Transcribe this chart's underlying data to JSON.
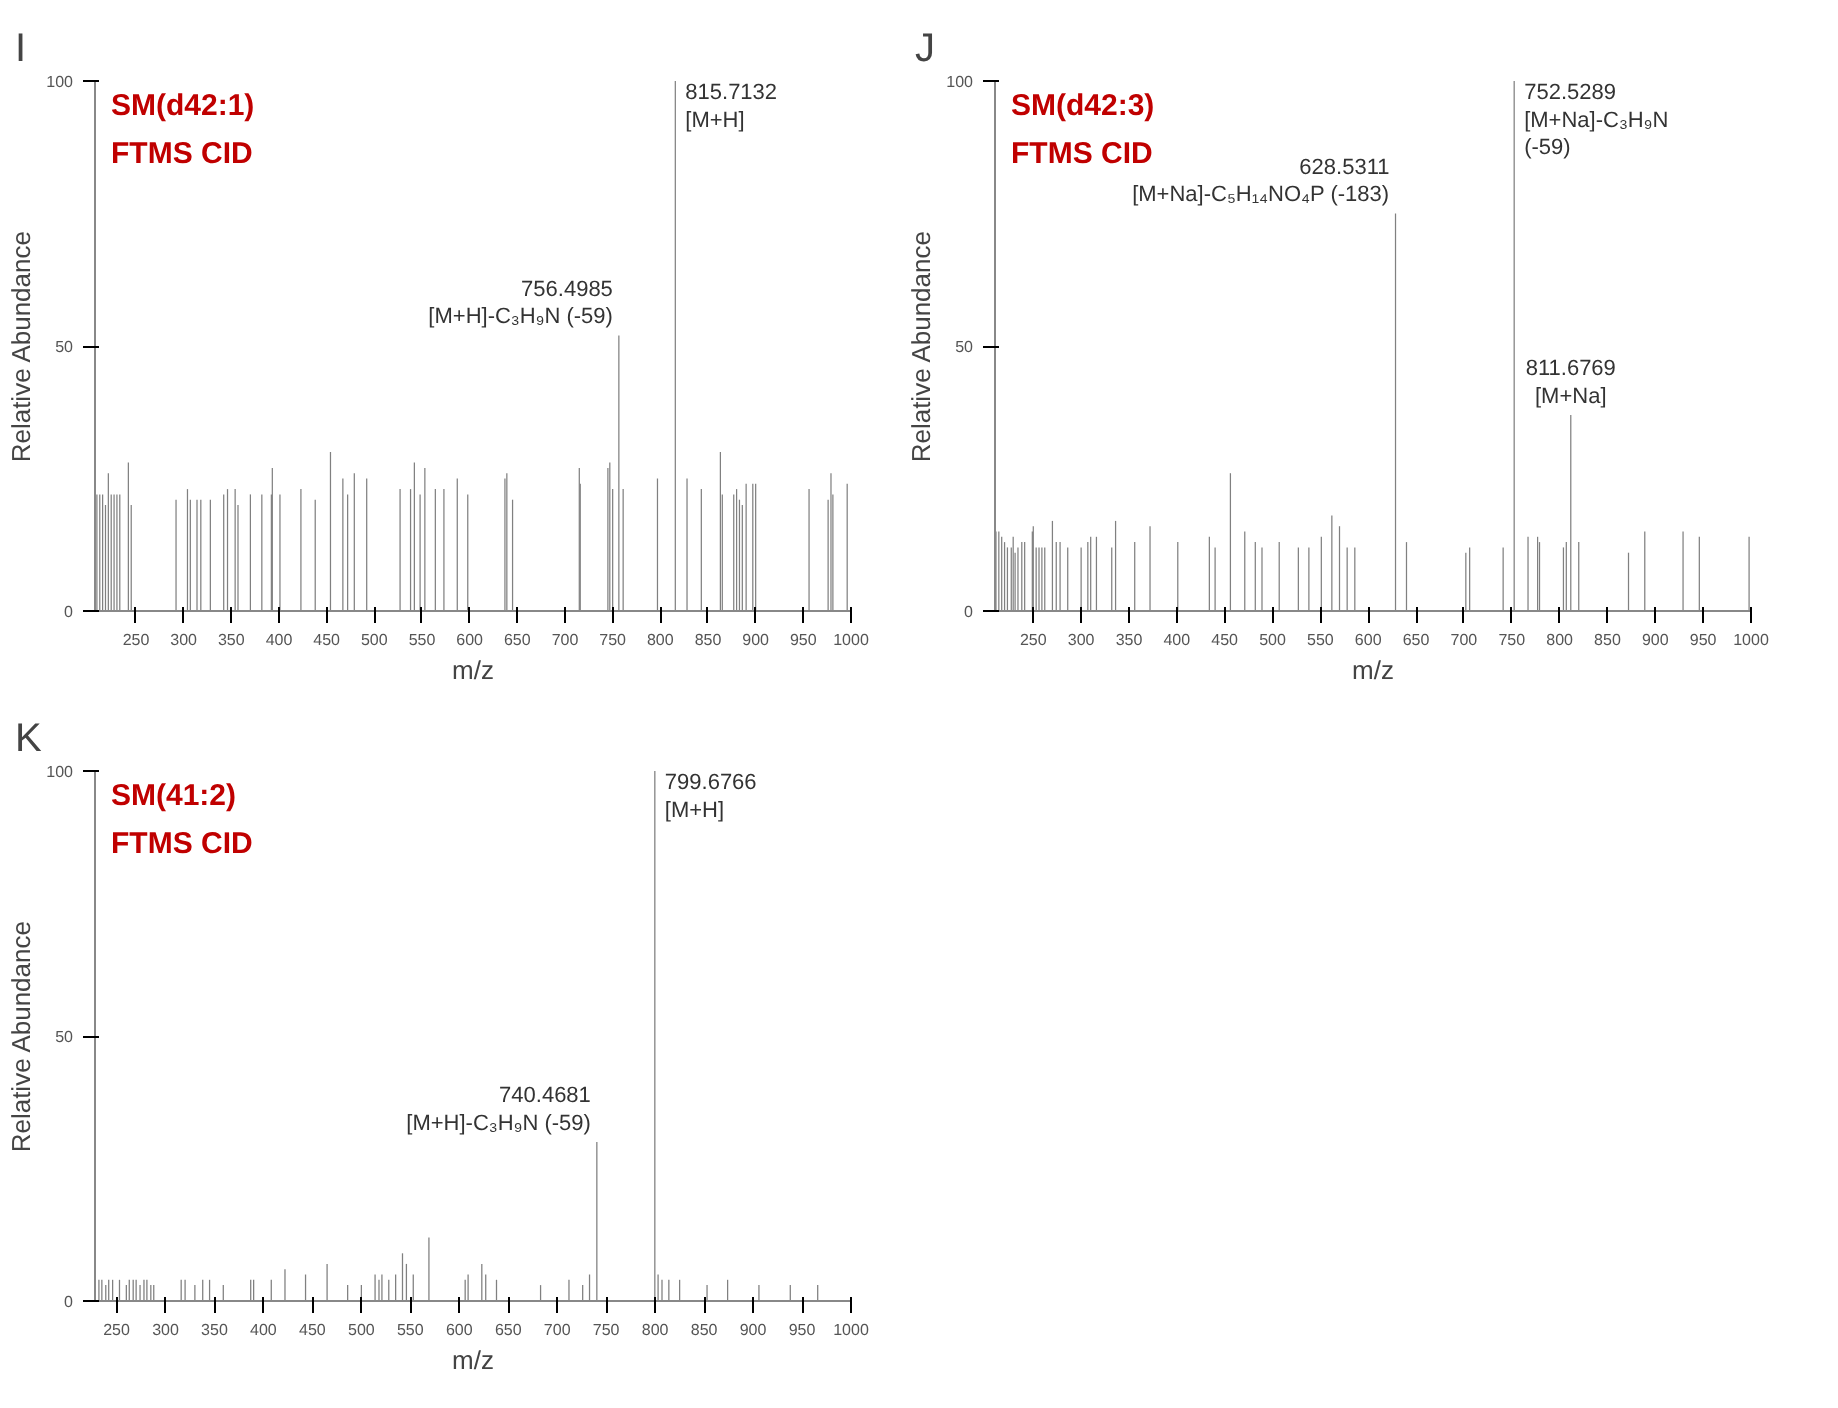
{
  "chart_data": [
    {
      "type": "bar",
      "title": "I",
      "xlabel": "m/z",
      "ylabel": "Relative Abundance",
      "xlim": [
        207,
        1000
      ],
      "ylim": [
        0,
        100
      ],
      "xticks": [
        250,
        300,
        350,
        400,
        450,
        500,
        550,
        600,
        650,
        700,
        750,
        800,
        850,
        900,
        950,
        1000
      ],
      "yticks": [
        0,
        50,
        100
      ],
      "grid": false,
      "color": "#808080",
      "x": [
        209,
        212,
        215,
        218,
        221,
        224,
        227,
        230,
        233,
        242,
        245,
        292,
        304,
        307,
        314,
        318,
        328,
        342,
        346,
        354,
        357,
        370,
        382,
        392,
        393,
        401,
        423,
        438,
        454,
        467,
        472,
        479,
        492,
        527,
        538,
        542,
        548,
        553,
        564,
        573,
        587,
        598,
        637,
        639,
        645,
        715,
        716,
        745,
        747,
        750,
        756.4985,
        761,
        797,
        815.7132,
        828,
        843,
        863,
        865,
        877,
        880,
        883,
        886,
        890,
        897,
        900,
        956,
        976,
        979,
        981,
        996
      ],
      "values": [
        22,
        22,
        22,
        20,
        26,
        22,
        22,
        22,
        22,
        28,
        20,
        21,
        23,
        21,
        21,
        21,
        21,
        22,
        23,
        23,
        20,
        22,
        22,
        22,
        27,
        22,
        23,
        21,
        30,
        25,
        22,
        26,
        25,
        23,
        23,
        28,
        22,
        27,
        23,
        23,
        25,
        22,
        25,
        26,
        21,
        27,
        24,
        27,
        28,
        23,
        52,
        23,
        25,
        100,
        25,
        23,
        30,
        22,
        22,
        23,
        21,
        20,
        24,
        24,
        24,
        23,
        21,
        26,
        22,
        24
      ],
      "annotations": [
        "SM(d42:1)",
        "FTMS CID",
        {
          "text": "756.4985\n[M+H]-C₃H₉N (-59)",
          "x": 756.4985,
          "y": 52
        },
        {
          "text": "815.7132\n[M+H]",
          "x": 815.7132,
          "y": 100
        }
      ]
    },
    {
      "type": "bar",
      "title": "J",
      "xlabel": "m/z",
      "ylabel": "Relative Abundance",
      "xlim": [
        210,
        1000
      ],
      "ylim": [
        0,
        100
      ],
      "xticks": [
        250,
        300,
        350,
        400,
        450,
        500,
        550,
        600,
        650,
        700,
        750,
        800,
        850,
        900,
        950,
        1000
      ],
      "yticks": [
        0,
        50,
        100
      ],
      "grid": false,
      "color": "#808080",
      "x": [
        211,
        214,
        217,
        220,
        223,
        227,
        229,
        231,
        234,
        238,
        241,
        249,
        250,
        253,
        256,
        259,
        262,
        270,
        274,
        278,
        286,
        300,
        307,
        310,
        316,
        332,
        336,
        356,
        372,
        401,
        434,
        440,
        456,
        471,
        482,
        489,
        507,
        527,
        538,
        551,
        562,
        570,
        578,
        586,
        628.5311,
        640,
        702,
        706,
        741,
        752.5289,
        767,
        777,
        779,
        804,
        807,
        811.6769,
        820,
        872,
        889,
        929,
        946,
        998
      ],
      "values": [
        15,
        15,
        14,
        13,
        12,
        12,
        14,
        11,
        12,
        13,
        13,
        15,
        16,
        12,
        12,
        12,
        12,
        17,
        13,
        13,
        12,
        12,
        13,
        14,
        14,
        12,
        17,
        13,
        16,
        13,
        14,
        12,
        26,
        15,
        13,
        12,
        13,
        12,
        12,
        14,
        18,
        16,
        12,
        12,
        75,
        13,
        11,
        12,
        12,
        100,
        14,
        14,
        13,
        12,
        13,
        37,
        13,
        11,
        15,
        15,
        14,
        14
      ],
      "annotations": [
        "SM(d42:3)",
        "FTMS CID",
        {
          "text": "628.5311\n[M+Na]-C₅H₁₄NO₄P (-183)",
          "x": 628.5311,
          "y": 75
        },
        {
          "text": "752.5289\n[M+Na]-C₃H₉N\n(-59)",
          "x": 752.5289,
          "y": 100
        },
        {
          "text": "811.6769\n[M+Na]",
          "x": 811.6769,
          "y": 37
        }
      ]
    },
    {
      "type": "bar",
      "title": "K",
      "xlabel": "m/z",
      "ylabel": "Relative Abundance",
      "xlim": [
        228,
        1000
      ],
      "ylim": [
        0,
        100
      ],
      "xticks": [
        250,
        300,
        350,
        400,
        450,
        500,
        550,
        600,
        650,
        700,
        750,
        800,
        850,
        900,
        950,
        1000
      ],
      "yticks": [
        0,
        50,
        100
      ],
      "grid": false,
      "color": "#808080",
      "x": [
        232,
        235,
        239,
        242,
        246,
        253,
        260,
        263,
        267,
        270,
        274,
        278,
        281,
        285,
        288,
        316,
        320,
        330,
        338,
        345,
        359,
        387,
        390,
        408,
        422,
        443,
        465,
        486,
        500,
        514,
        518,
        521,
        528,
        535,
        542,
        546,
        553,
        569,
        606,
        609,
        623,
        627,
        638,
        683,
        712,
        726,
        733,
        740.4681,
        799.6766,
        803,
        807,
        814,
        825,
        853,
        874,
        906,
        938,
        966
      ],
      "values": [
        4,
        4,
        3,
        4,
        4,
        4,
        3,
        4,
        4,
        4,
        3,
        4,
        4,
        3,
        3,
        4,
        4,
        3,
        4,
        4,
        3,
        4,
        4,
        4,
        6,
        5,
        7,
        3,
        3,
        5,
        4,
        5,
        4,
        5,
        9,
        7,
        5,
        12,
        4,
        5,
        7,
        5,
        4,
        3,
        4,
        3,
        5,
        30,
        100,
        5,
        4,
        4,
        4,
        3,
        4,
        3,
        3,
        3
      ],
      "annotations": [
        "SM(41:2)",
        "FTMS CID",
        {
          "text": "740.4681\n[M+H]-C₃H₉N (-59)",
          "x": 740.4681,
          "y": 30
        },
        {
          "text": "799.6766\n[M+H]",
          "x": 799.6766,
          "y": 100
        }
      ]
    }
  ]
}
